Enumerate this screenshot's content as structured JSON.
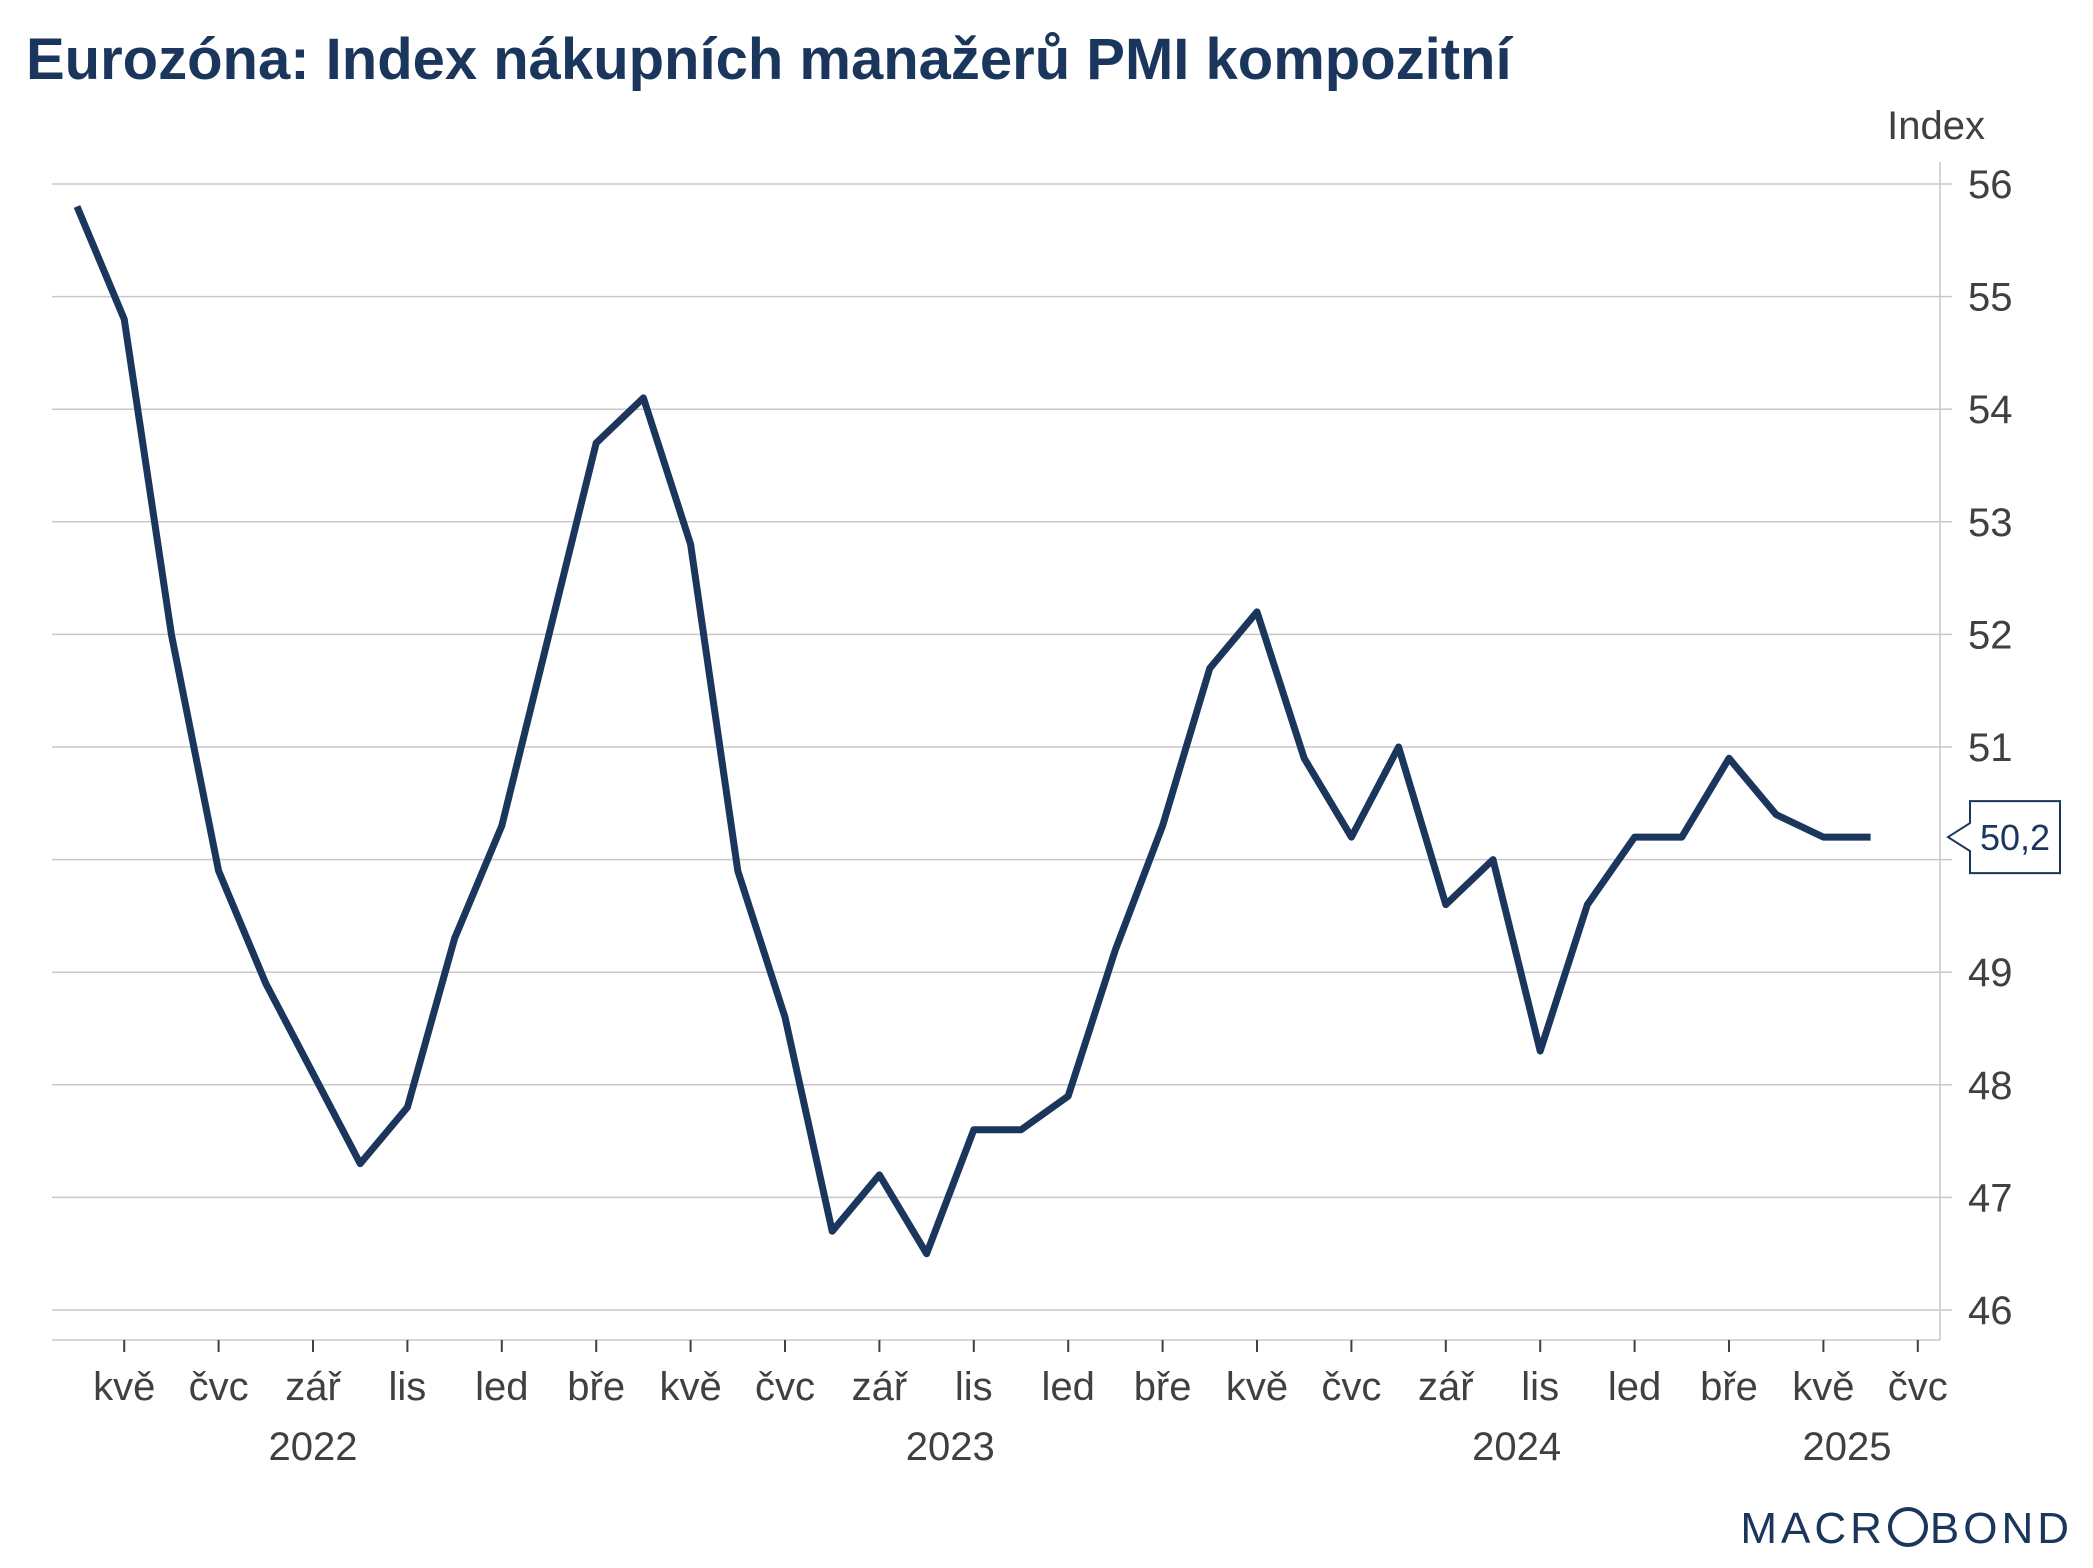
{
  "chart_data": {
    "type": "line",
    "title": "Eurozóna: Index nákupních manažerů PMI kompozitní",
    "ylabel": "Index",
    "ylim": [
      46,
      56
    ],
    "yticks": [
      "56",
      "55",
      "54",
      "53",
      "52",
      "51",
      "50",
      "49",
      "48",
      "47",
      "46"
    ],
    "y_axis_position": "right",
    "grid": true,
    "x_month_labels": [
      "kvě",
      "čvc",
      "zář",
      "lis",
      "led",
      "bře",
      "kvě",
      "čvc",
      "zář",
      "lis",
      "led",
      "bře",
      "kvě",
      "čvc",
      "zář",
      "lis",
      "led",
      "bře",
      "kvě",
      "čvc"
    ],
    "x_year_labels": [
      "2022",
      "2023",
      "2024",
      "2025"
    ],
    "x_start": "2022-04",
    "series": [
      {
        "color": "#1b365d",
        "values": [
          55.8,
          54.8,
          52.0,
          49.9,
          48.9,
          48.1,
          47.3,
          47.8,
          49.3,
          50.3,
          52.0,
          53.7,
          54.1,
          52.8,
          49.9,
          48.6,
          46.7,
          47.2,
          46.5,
          47.6,
          47.6,
          47.9,
          49.2,
          50.3,
          51.7,
          52.2,
          50.9,
          50.2,
          51.0,
          49.6,
          50.0,
          48.3,
          49.6,
          50.2,
          50.2,
          50.9,
          50.4,
          50.2,
          50.2
        ]
      }
    ],
    "last_value_label": "50,2"
  },
  "branding": {
    "logo_left": "MACR",
    "logo_right": "BOND"
  }
}
